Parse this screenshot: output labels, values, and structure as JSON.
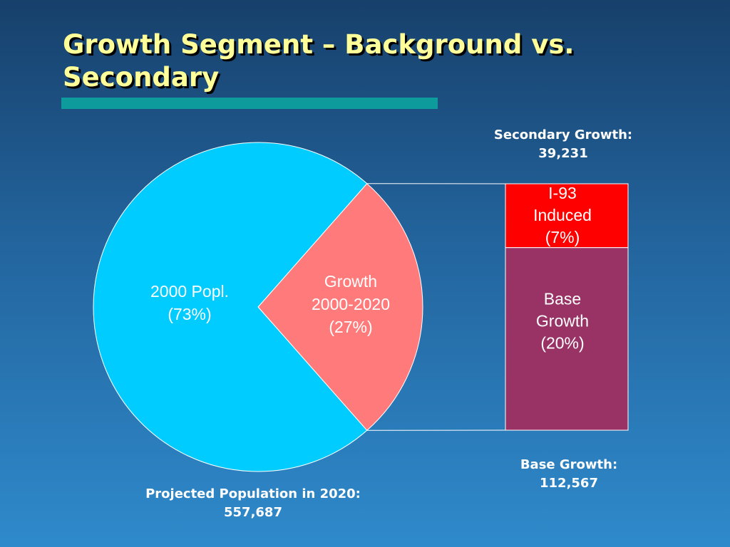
{
  "title": "Growth Segment – Background vs. Secondary",
  "colors": {
    "title_text": "#ffff99",
    "title_rule": "#0d9b9c",
    "pie_main": "#00ccff",
    "pie_growth": "#ff7a7a",
    "bar_induced": "#ff0000",
    "bar_base": "#993366"
  },
  "chart_data": {
    "type": "pie",
    "pie": {
      "slices": [
        {
          "label_lines": [
            "2000 Popl.",
            "(73%)"
          ],
          "value": 73,
          "color": "#00ccff"
        },
        {
          "label_lines": [
            "Growth",
            "2000-2020",
            "(27%)"
          ],
          "value": 27,
          "color": "#ff7a7a"
        }
      ]
    },
    "breakdown_bar": {
      "of_slice": "Growth 2000-2020",
      "type": "stacked_bar",
      "segments": [
        {
          "label_lines": [
            "I-93",
            "Induced",
            "(7%)"
          ],
          "value": 7,
          "color": "#ff0000"
        },
        {
          "label_lines": [
            "Base",
            "Growth",
            "(20%)"
          ],
          "value": 20,
          "color": "#993366"
        }
      ]
    }
  },
  "captions": {
    "secondary": "Secondary Growth:\n39,231",
    "base": "Base Growth:\n112,567",
    "total": "Projected Population in 2020:\n557,687"
  }
}
